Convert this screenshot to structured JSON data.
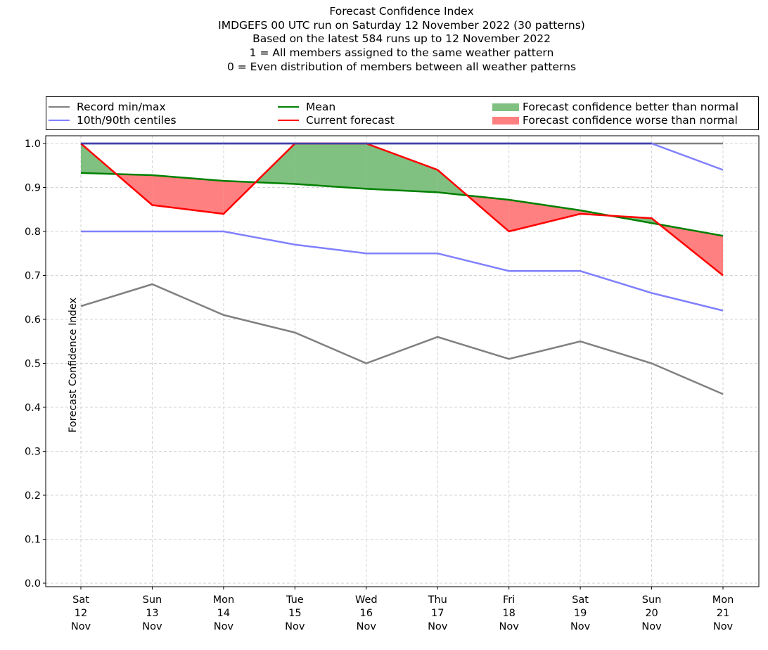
{
  "chart_data": {
    "type": "line",
    "title_lines": [
      "Forecast Confidence Index",
      "IMDGEFS 00 UTC run on Saturday 12 November 2022 (30 patterns)",
      "Based on the latest 584 runs up to 12 November 2022",
      "1 = All members assigned to the same weather pattern",
      "0 = Even distribution of members between all weather patterns"
    ],
    "xlabel": "",
    "ylabel": "Forecast Confidence Index",
    "ylim": [
      -0.01,
      1.01
    ],
    "yticks": [
      0.0,
      0.1,
      0.2,
      0.3,
      0.4,
      0.5,
      0.6,
      0.7,
      0.8,
      0.9,
      1.0
    ],
    "ytick_labels": [
      "0.0",
      "0.1",
      "0.2",
      "0.3",
      "0.4",
      "0.5",
      "0.6",
      "0.7",
      "0.8",
      "0.9",
      "1.0"
    ],
    "grid": true,
    "legend_position": "top, above plot",
    "categories": [
      [
        "Sat",
        "12",
        "Nov"
      ],
      [
        "Sun",
        "13",
        "Nov"
      ],
      [
        "Mon",
        "14",
        "Nov"
      ],
      [
        "Tue",
        "15",
        "Nov"
      ],
      [
        "Wed",
        "16",
        "Nov"
      ],
      [
        "Thu",
        "17",
        "Nov"
      ],
      [
        "Fri",
        "18",
        "Nov"
      ],
      [
        "Sat",
        "19",
        "Nov"
      ],
      [
        "Sun",
        "20",
        "Nov"
      ],
      [
        "Mon",
        "21",
        "Nov"
      ]
    ],
    "series": [
      {
        "name": "Record min",
        "legend": "Record min/max",
        "color": "#808080",
        "values": [
          0.63,
          0.68,
          0.61,
          0.57,
          0.5,
          0.56,
          0.51,
          0.55,
          0.5,
          0.43
        ]
      },
      {
        "name": "Record max",
        "legend": "",
        "color": "#808080",
        "values": [
          1.0,
          1.0,
          1.0,
          1.0,
          1.0,
          1.0,
          1.0,
          1.0,
          1.0,
          1.0
        ]
      },
      {
        "name": "10th centile",
        "legend": "10th/90th centiles",
        "color": "#8080ff",
        "values": [
          0.8,
          0.8,
          0.8,
          0.77,
          0.75,
          0.75,
          0.71,
          0.71,
          0.66,
          0.62
        ]
      },
      {
        "name": "90th centile",
        "legend": "",
        "color": "#8080ff",
        "values": [
          1.0,
          1.0,
          1.0,
          1.0,
          1.0,
          1.0,
          1.0,
          1.0,
          1.0,
          0.94
        ]
      },
      {
        "name": "Mean",
        "legend": "Mean",
        "color": "#008000",
        "values": [
          0.933,
          0.928,
          0.915,
          0.908,
          0.897,
          0.889,
          0.872,
          0.848,
          0.819,
          0.79
        ]
      },
      {
        "name": "Current forecast",
        "legend": "Current forecast",
        "color": "#ff0000",
        "values": [
          1.0,
          0.86,
          0.84,
          1.0,
          1.0,
          0.94,
          0.8,
          0.84,
          0.83,
          0.7
        ]
      }
    ],
    "fills": [
      {
        "name": "Forecast confidence better than normal",
        "color": "#80c080",
        "rule": "current > mean"
      },
      {
        "name": "Forecast confidence worse than normal",
        "color": "#ff8080",
        "rule": "current < mean"
      }
    ]
  },
  "legend": {
    "record": "Record min/max",
    "centiles": "10th/90th centiles",
    "mean": "Mean",
    "current": "Current forecast",
    "better": "Forecast confidence better than normal",
    "worse": "Forecast confidence worse than normal"
  }
}
